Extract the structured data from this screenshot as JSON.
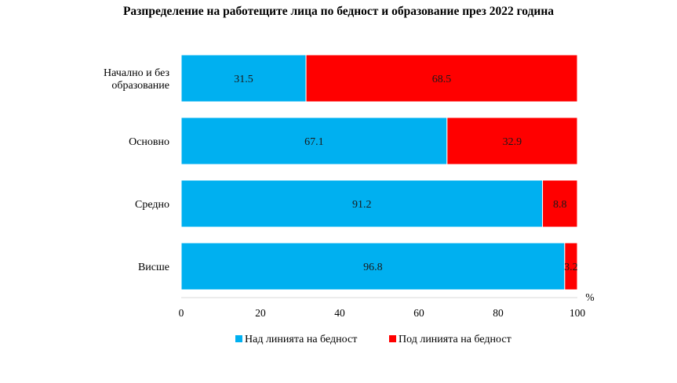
{
  "chart_data": {
    "type": "bar",
    "orientation": "horizontal",
    "stacked": true,
    "title": "Разпределение на работещите лица по бедност и образование през 2022 година",
    "categories": [
      [
        "Начално и без",
        "образование"
      ],
      [
        "Основно"
      ],
      [
        "Средно"
      ],
      [
        "Висше"
      ]
    ],
    "series": [
      {
        "name": "Над линията на бедност",
        "color": "#00b0f0",
        "values": [
          31.5,
          67.1,
          91.2,
          96.8
        ]
      },
      {
        "name": "Под линията на бедност",
        "color": "#ff0000",
        "values": [
          68.5,
          32.9,
          8.8,
          3.2
        ]
      }
    ],
    "xlim": [
      0,
      100
    ],
    "xticks": [
      0,
      20,
      40,
      60,
      80,
      100
    ],
    "xunit": "%",
    "grid": false,
    "legend_position": "bottom"
  }
}
